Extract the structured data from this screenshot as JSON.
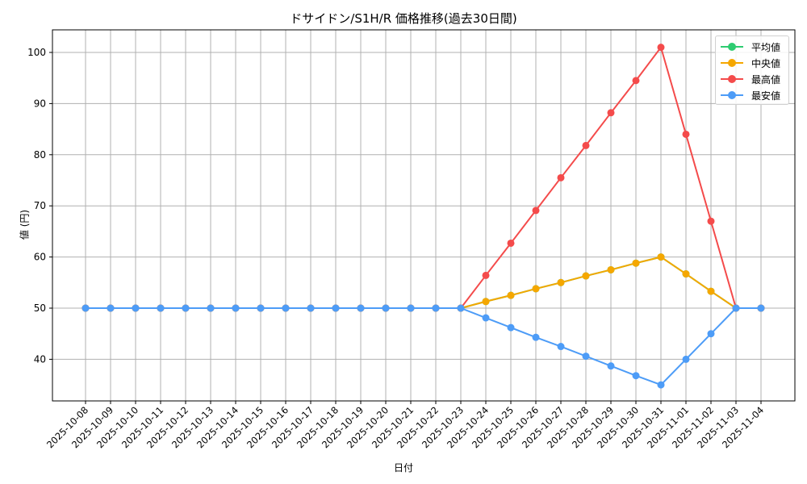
{
  "chart_data": {
    "type": "line",
    "title": "ドサイドン/S1H/R 価格推移(過去30日間)",
    "xlabel": "日付",
    "ylabel": "値 (円)",
    "ylim": [
      32,
      105
    ],
    "yticks": [
      40,
      50,
      60,
      70,
      80,
      90,
      100
    ],
    "grid": true,
    "legend_position": "upper right",
    "categories": [
      "2025-10-08",
      "2025-10-09",
      "2025-10-10",
      "2025-10-11",
      "2025-10-12",
      "2025-10-13",
      "2025-10-14",
      "2025-10-15",
      "2025-10-16",
      "2025-10-17",
      "2025-10-18",
      "2025-10-19",
      "2025-10-20",
      "2025-10-21",
      "2025-10-22",
      "2025-10-23",
      "2025-10-24",
      "2025-10-25",
      "2025-10-26",
      "2025-10-27",
      "2025-10-28",
      "2025-10-29",
      "2025-10-30",
      "2025-10-31",
      "2025-11-01",
      "2025-11-02",
      "2025-11-03",
      "2025-11-04"
    ],
    "series": [
      {
        "name": "平均値",
        "color": "#2ecc71",
        "values": [
          50,
          50,
          50,
          50,
          50,
          50,
          50,
          50,
          50,
          50,
          50,
          50,
          50,
          50,
          50,
          50,
          51.3,
          52.5,
          53.8,
          55,
          56.3,
          57.5,
          58.8,
          60,
          56.7,
          53.3,
          50,
          50
        ]
      },
      {
        "name": "中央値",
        "color": "#f5a700",
        "values": [
          50,
          50,
          50,
          50,
          50,
          50,
          50,
          50,
          50,
          50,
          50,
          50,
          50,
          50,
          50,
          50,
          51.3,
          52.5,
          53.8,
          55,
          56.3,
          57.5,
          58.8,
          60,
          56.7,
          53.3,
          50,
          50
        ]
      },
      {
        "name": "最高値",
        "color": "#f44b4b",
        "values": [
          50,
          50,
          50,
          50,
          50,
          50,
          50,
          50,
          50,
          50,
          50,
          50,
          50,
          50,
          50,
          50,
          56.4,
          62.7,
          69.1,
          75.5,
          81.8,
          88.2,
          94.5,
          101,
          84,
          67,
          50,
          50
        ]
      },
      {
        "name": "最安値",
        "color": "#4d9cf7",
        "values": [
          50,
          50,
          50,
          50,
          50,
          50,
          50,
          50,
          50,
          50,
          50,
          50,
          50,
          50,
          50,
          50,
          48.1,
          46.2,
          44.3,
          42.5,
          40.6,
          38.7,
          36.8,
          35,
          40,
          45,
          50,
          50
        ]
      }
    ]
  }
}
